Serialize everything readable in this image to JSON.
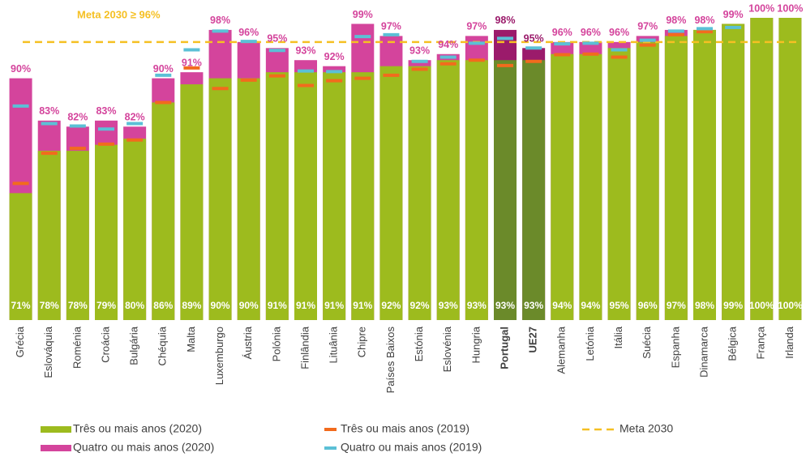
{
  "chart_data": {
    "type": "bar",
    "ylim": [
      50,
      100
    ],
    "categories": [
      "Grécia",
      "Eslováquia",
      "Roménia",
      "Croácia",
      "Bulgária",
      "Chéquia",
      "Malta",
      "Luxemburgo",
      "Áustria",
      "Polónia",
      "Finlândia",
      "Lituânia",
      "Chipre",
      "Países Baixos",
      "Estónia",
      "Eslovénia",
      "Hungria",
      "Portugal",
      "UE27",
      "Alemanha",
      "Letónia",
      "Itália",
      "Suécia",
      "Espanha",
      "Dinamarca",
      "Bélgica",
      "França",
      "Irlanda"
    ],
    "highlight": [
      17,
      18
    ],
    "series": [
      {
        "name": "Quatro ou mais anos (2020)",
        "style": "bar",
        "color": "#d4449c",
        "highlight_color": "#9b1b6b",
        "label_position": "top",
        "values": [
          90,
          83,
          82,
          83,
          82,
          90,
          91,
          98,
          96,
          95,
          93,
          92,
          99,
          97,
          93,
          94,
          97,
          98,
          95,
          96,
          96,
          96,
          97,
          98,
          98,
          99,
          100,
          100
        ],
        "value_labels": [
          "90%",
          "83%",
          "82%",
          "83%",
          "82%",
          "90%",
          "91%",
          "98%",
          "96%",
          "95%",
          "93%",
          "92%",
          "99%",
          "97%",
          "93%",
          "94%",
          "97%",
          "98%",
          "95%",
          "96%",
          "96%",
          "96%",
          "97%",
          "98%",
          "98%",
          "99%",
          "100%",
          "100%"
        ]
      },
      {
        "name": "Três ou mais anos (2020)",
        "style": "bar",
        "color": "#9dbb1e",
        "highlight_color": "#6b8a2a",
        "label_position": "inside",
        "values": [
          71,
          78,
          78,
          79,
          80,
          86,
          89,
          90,
          90,
          91,
          91,
          91,
          91,
          92,
          92,
          93,
          93,
          93,
          93,
          94,
          94,
          95,
          96,
          97,
          98,
          99,
          100,
          100
        ],
        "value_labels": [
          "71%",
          "78%",
          "78%",
          "79%",
          "80%",
          "86%",
          "89%",
          "90%",
          "90%",
          "91%",
          "91%",
          "91%",
          "91%",
          "92%",
          "92%",
          "93%",
          "93%",
          "93%",
          "93%",
          "94%",
          "94%",
          "95%",
          "96%",
          "97%",
          "98%",
          "99%",
          "100%",
          "100%"
        ]
      },
      {
        "name": "Três ou mais anos (2019)",
        "style": "marker",
        "color": "#f26b1d",
        "values": [
          72.6,
          77.6,
          78.4,
          79.1,
          79.8,
          86.0,
          91.7,
          88.3,
          89.7,
          90.4,
          88.8,
          89.6,
          90.0,
          90.5,
          91.5,
          92.4,
          93.0,
          92.1,
          92.8,
          93.9,
          94.0,
          93.5,
          95.5,
          97.2,
          97.7,
          null,
          null,
          null
        ]
      },
      {
        "name": "Quatro ou mais anos (2019)",
        "style": "marker",
        "color": "#5bc0d6",
        "values": [
          85.4,
          82.5,
          82.1,
          81.6,
          82.5,
          90.5,
          94.7,
          97.8,
          96.1,
          94.6,
          91.2,
          91.1,
          96.9,
          97.2,
          92.8,
          93.5,
          95.8,
          96.6,
          95.0,
          95.7,
          95.8,
          94.7,
          96.3,
          97.8,
          98.2,
          98.4,
          null,
          null
        ]
      }
    ],
    "reference_line": {
      "name": "Meta 2030",
      "value": 96,
      "color": "#f5c023",
      "label": "Meta 2030 ≥ 96%"
    },
    "legend_order": [
      1,
      2,
      0,
      3
    ]
  }
}
